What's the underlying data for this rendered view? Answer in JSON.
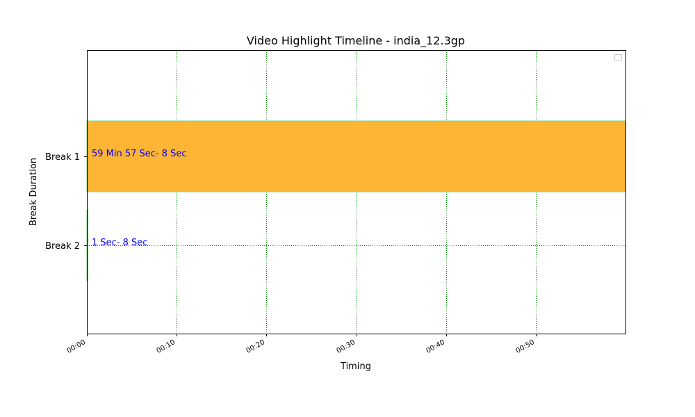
{
  "chart_data": {
    "type": "bar",
    "orientation": "horizontal",
    "title": "Video Highlight Timeline - india_12.3gp",
    "xlabel": "Timing",
    "ylabel": "Break Duration",
    "x_unit": "minutes",
    "xlim": [
      0,
      60
    ],
    "x_ticks": [
      0,
      10,
      20,
      30,
      40,
      50
    ],
    "x_tick_labels": [
      "00:00",
      "00:10",
      "00:20",
      "00:30",
      "00:40",
      "00:50"
    ],
    "grid": true,
    "legend": "top-right (empty)",
    "categories": [
      "Break 1",
      "Break 2"
    ],
    "bars": [
      {
        "category": "Break 1",
        "start": 0,
        "end": 60,
        "label": "59 Min 57 Sec- 8 Sec",
        "color": "#fdb536",
        "edge_color": "#7fd47f"
      },
      {
        "category": "Break 2",
        "start": 0,
        "end": 0.12,
        "label": "1 Sec- 8 Sec",
        "color": "#fdb536",
        "edge_color": "#7fd47f"
      }
    ],
    "colors": {
      "grid": "#008000",
      "label_text": "#0000ff"
    }
  }
}
